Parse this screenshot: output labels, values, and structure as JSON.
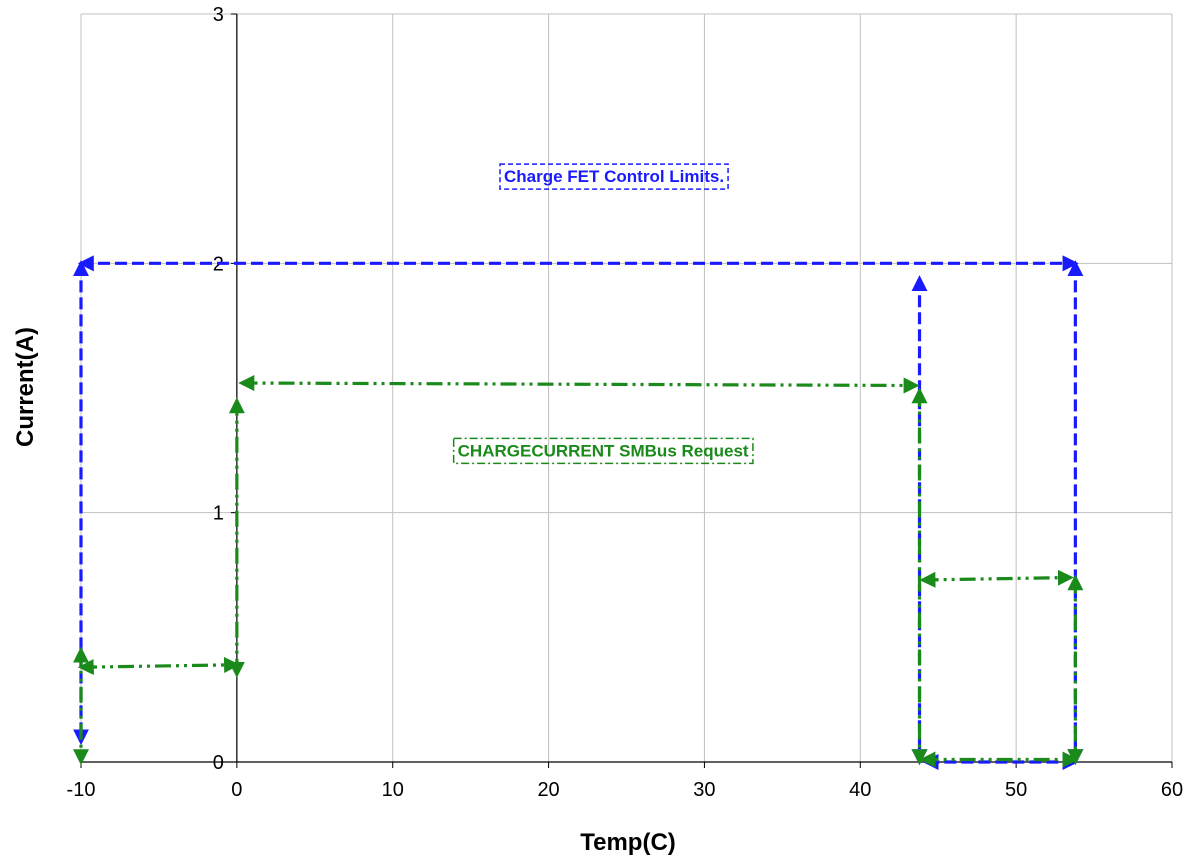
{
  "chart_data": {
    "type": "line",
    "title": "",
    "xlabel": "Temp(C)",
    "ylabel": "Current(A)",
    "xlim": [
      -10,
      60
    ],
    "ylim": [
      0,
      3
    ],
    "x_ticks": [
      -10,
      0,
      10,
      20,
      30,
      40,
      50,
      60
    ],
    "y_ticks": [
      0,
      1,
      2,
      3
    ],
    "grid": true,
    "colors": {
      "fet": "#1a1aff",
      "request": "#1a8a1a",
      "grid": "#c0c0c0",
      "axis": "#000000"
    },
    "fet_limits": {
      "segments": [
        [
          [
            -10,
            2
          ],
          [
            -10,
            0.08
          ]
        ],
        [
          [
            -10,
            2
          ],
          [
            53.8,
            2
          ]
        ],
        [
          [
            53.8,
            2
          ],
          [
            53.8,
            0
          ]
        ],
        [
          [
            43.8,
            1.94
          ],
          [
            43.8,
            0
          ]
        ],
        [
          [
            53.8,
            0
          ],
          [
            44.2,
            0
          ]
        ]
      ]
    },
    "smbus_request": {
      "segments": [
        [
          [
            -10,
            0.45
          ],
          [
            -10,
            0
          ]
        ],
        [
          [
            -10,
            0.38
          ],
          [
            0,
            0.39
          ]
        ],
        [
          [
            0,
            0.35
          ],
          [
            0,
            1.45
          ]
        ],
        [
          [
            0.3,
            1.52
          ],
          [
            43.6,
            1.51
          ]
        ],
        [
          [
            43.8,
            1.49
          ],
          [
            43.8,
            0
          ]
        ],
        [
          [
            44,
            0.73
          ],
          [
            53.5,
            0.74
          ]
        ],
        [
          [
            53.8,
            0.74
          ],
          [
            53.8,
            0
          ]
        ],
        [
          [
            44,
            0.01
          ],
          [
            53.8,
            0.01
          ]
        ]
      ]
    },
    "annotations": [
      {
        "series": "fet",
        "text": "Charge FET Control Limits.",
        "x": 24.2,
        "y": 2.35
      },
      {
        "series": "request",
        "text": "CHARGECURRENT SMBus Request",
        "x": 23.5,
        "y": 1.25
      }
    ]
  }
}
